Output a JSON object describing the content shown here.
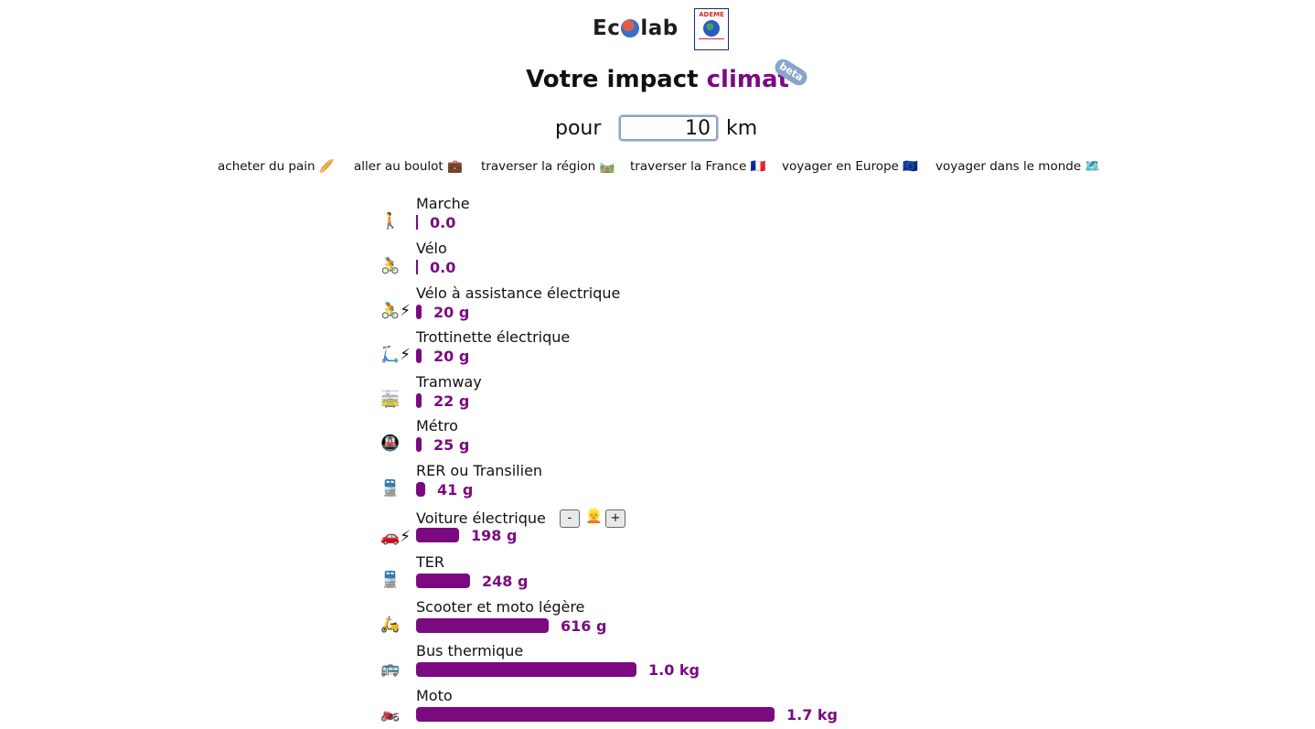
{
  "header": {
    "logo_text_left": "Ec",
    "logo_text_right": "lab",
    "ademe_label": "ADEME",
    "title_start": "Votre impact",
    "title_accent": "climat",
    "badge": "beta",
    "accent_color": "#7b0a80"
  },
  "distance": {
    "prefix": "pour",
    "value": "10",
    "unit": "km"
  },
  "presets": [
    {
      "label": "acheter du pain 🥖"
    },
    {
      "label": "aller au boulot 💼"
    },
    {
      "label": "traverser la région 🛤️"
    },
    {
      "label": "traverser la France 🇫🇷"
    },
    {
      "label": "voyager en Europe 🇪🇺"
    },
    {
      "label": "voyager dans le monde 🗺️"
    }
  ],
  "modes": [
    {
      "icon": "🚶",
      "name": "Marche",
      "value": "0.0",
      "grams": 0
    },
    {
      "icon": "🚴",
      "name": "Vélo",
      "value": "0.0",
      "grams": 0
    },
    {
      "icon": "🚴⚡",
      "name": "Vélo à assistance électrique",
      "value": "20 g",
      "grams": 20
    },
    {
      "icon": "🛴⚡",
      "name": "Trottinette électrique",
      "value": "20 g",
      "grams": 20
    },
    {
      "icon": "🚋",
      "name": "Tramway",
      "value": "22 g",
      "grams": 22
    },
    {
      "icon": "🚇",
      "name": "Métro",
      "value": "25 g",
      "grams": 25
    },
    {
      "icon": "🚆",
      "name": "RER ou Transilien",
      "value": "41 g",
      "grams": 41
    },
    {
      "icon": "🚗⚡",
      "name": "Voiture électrique",
      "value": "198 g",
      "grams": 198,
      "stepper": {
        "minus": "-",
        "plus": "+",
        "person": "👱"
      }
    },
    {
      "icon": "🚆",
      "name": "TER",
      "value": "248 g",
      "grams": 248
    },
    {
      "icon": "🛵",
      "name": "Scooter et moto légère",
      "value": "616 g",
      "grams": 616
    },
    {
      "icon": "🚌",
      "name": "Bus thermique",
      "value": "1.0 kg",
      "grams": 1020
    },
    {
      "icon": "🏍️",
      "name": "Moto",
      "value": "1.7 kg",
      "grams": 1660
    }
  ]
}
